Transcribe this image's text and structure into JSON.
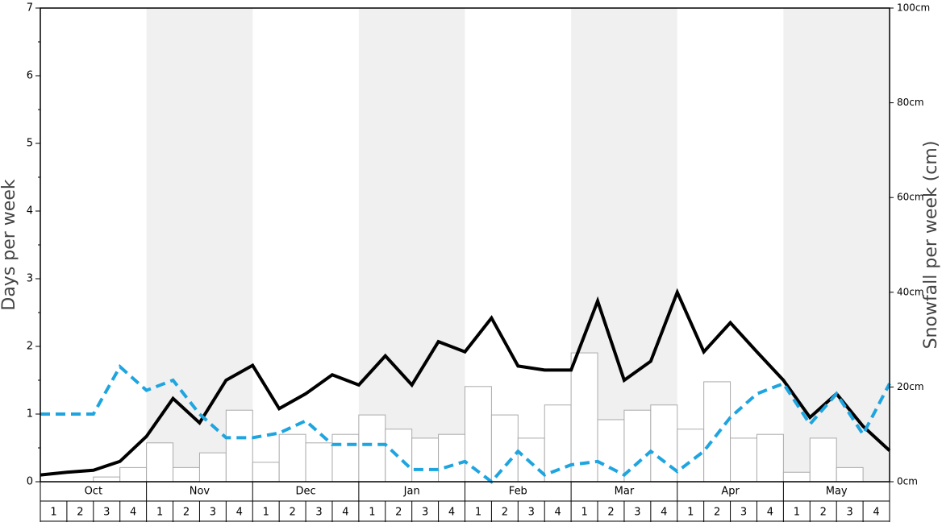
{
  "chart_data": {
    "type": "bar",
    "ylabel": "Days per week",
    "y2label": "Snowfall per week (cm)",
    "months": [
      "Oct",
      "Nov",
      "Dec",
      "Jan",
      "Feb",
      "Mar",
      "Apr",
      "May"
    ],
    "weeks": [
      "1",
      "2",
      "3",
      "4"
    ],
    "ylim": [
      0,
      7
    ],
    "yticks": [
      0,
      1,
      2,
      3,
      4,
      5,
      6,
      7
    ],
    "y2lim": [
      0,
      100
    ],
    "y2ticks": [
      {
        "value": 0,
        "label": "0cm"
      },
      {
        "value": 20,
        "label": "20cm"
      },
      {
        "value": 40,
        "label": "40cm"
      },
      {
        "value": 60,
        "label": "60cm"
      },
      {
        "value": 80,
        "label": "80cm"
      },
      {
        "value": 100,
        "label": "100cm"
      }
    ],
    "shade_color": "#f0f0f0",
    "bars": {
      "axis": "y2",
      "color": "#ffffff",
      "edge": "#aaaaaa",
      "values": [
        0,
        0,
        1,
        3,
        8.2,
        3,
        6.1,
        15.1,
        4.1,
        10,
        8.2,
        10,
        14.1,
        11.1,
        9.2,
        10,
        20.1,
        14.1,
        9.2,
        16.2,
        27.2,
        13.1,
        15.1,
        16.2,
        11.1,
        21.1,
        9.2,
        10,
        2,
        9.2,
        3,
        0
      ]
    },
    "series": [
      {
        "color": "#000000",
        "dashed": false,
        "values": [
          0.1,
          0.14,
          0.17,
          0.3,
          0.67,
          1.23,
          0.87,
          1.5,
          1.72,
          1.08,
          1.3,
          1.58,
          1.43,
          1.86,
          1.43,
          2.07,
          1.92,
          2.42,
          1.71,
          1.65,
          1.65,
          2.67,
          1.5,
          1.78,
          2.8,
          1.92,
          2.35,
          1.92,
          1.5,
          0.95,
          1.3,
          0.82,
          0.46
        ]
      },
      {
        "color": "#1ea5e0",
        "dashed": true,
        "values": [
          1.0,
          1.0,
          1.0,
          1.7,
          1.35,
          1.5,
          1.0,
          0.65,
          0.65,
          0.72,
          0.9,
          0.55,
          0.55,
          0.55,
          0.18,
          0.18,
          0.3,
          0.0,
          0.45,
          0.1,
          0.25,
          0.3,
          0.1,
          0.45,
          0.15,
          0.45,
          0.95,
          1.3,
          1.45,
          0.85,
          1.3,
          0.7,
          1.45
        ]
      }
    ]
  }
}
